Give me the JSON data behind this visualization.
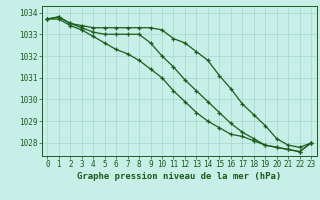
{
  "title": "Graphe pression niveau de la mer (hPa)",
  "background_color": "#c8eee8",
  "grid_color": "#a8d8cc",
  "line_color": "#1a5c1a",
  "x_values": [
    0,
    1,
    2,
    3,
    4,
    5,
    6,
    7,
    8,
    9,
    10,
    11,
    12,
    13,
    14,
    15,
    16,
    17,
    18,
    19,
    20,
    21,
    22,
    23
  ],
  "series": [
    [
      1033.7,
      1033.8,
      1033.5,
      1033.4,
      1033.3,
      1033.3,
      1033.3,
      1033.3,
      1033.3,
      1033.3,
      1033.2,
      1032.8,
      1032.6,
      1032.2,
      1031.8,
      1031.1,
      1030.5,
      1029.8,
      1029.3,
      1028.8,
      1028.2,
      1027.9,
      1027.8,
      1028.0
    ],
    [
      1033.7,
      1033.8,
      1033.5,
      1033.3,
      1033.1,
      1033.0,
      1033.0,
      1033.0,
      1033.0,
      1032.6,
      1032.0,
      1031.5,
      1030.9,
      1030.4,
      1029.9,
      1029.4,
      1028.9,
      1028.5,
      1028.2,
      1027.9,
      1027.8,
      1027.7,
      1027.6,
      1028.0
    ],
    [
      1033.7,
      1033.7,
      1033.4,
      1033.2,
      1032.9,
      1032.6,
      1032.3,
      1032.1,
      1031.8,
      1031.4,
      1031.0,
      1030.4,
      1029.9,
      1029.4,
      1029.0,
      1028.7,
      1028.4,
      1028.3,
      1028.1,
      1027.9,
      1027.8,
      1027.7,
      1027.6,
      1028.0
    ]
  ],
  "ylim": [
    1027.4,
    1034.3
  ],
  "yticks": [
    1028,
    1029,
    1030,
    1031,
    1032,
    1033,
    1034
  ],
  "xlim": [
    -0.5,
    23.5
  ],
  "tick_fontsize": 5.5,
  "title_fontsize": 6.5
}
